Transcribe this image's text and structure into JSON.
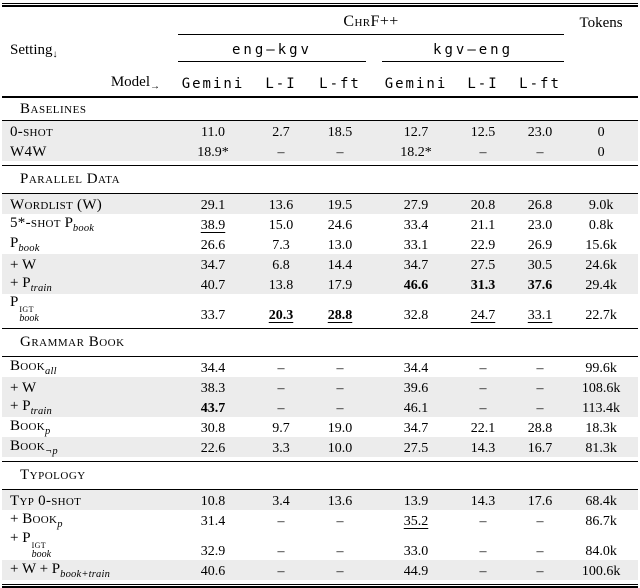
{
  "header": {
    "metric_label": "ChrF++",
    "tokens_label": "Tokens",
    "setting_label": "Setting",
    "setting_arrow": "↓",
    "model_label": "Model",
    "model_arrow": "→",
    "groups": [
      "eng–kgv",
      "kgv–eng"
    ],
    "model_cols": [
      "Gemini",
      "L-I",
      "L-ft"
    ]
  },
  "shade_color": "#ececec",
  "sections": [
    {
      "title": "Baselines",
      "rows": [
        {
          "label": [
            {
              "sc": "0-shot"
            }
          ],
          "indent": 0,
          "shaded": true,
          "cells": [
            "11.0",
            "2.7",
            "18.5",
            "12.7",
            "12.5",
            "23.0"
          ],
          "tokens": "0"
        },
        {
          "label": [
            {
              "sc": "W4W"
            }
          ],
          "indent": 0,
          "shaded": true,
          "cells": [
            "18.9*",
            "–",
            "–",
            "18.2*",
            "–",
            "–"
          ],
          "tokens": "0"
        }
      ]
    },
    {
      "title": "Parallel Data",
      "rows": [
        {
          "label": [
            {
              "sc": "Wordlist (W)"
            }
          ],
          "indent": 0,
          "shaded": true,
          "cells": [
            "29.1",
            "13.6",
            "19.5",
            "27.9",
            "20.8",
            "26.8"
          ],
          "tokens": "9.0k"
        },
        {
          "label": [
            {
              "sc": "5*-shot"
            },
            {
              "t": " P"
            },
            {
              "sub": "book"
            }
          ],
          "indent": 0,
          "shaded": false,
          "cells": [
            "38.9",
            "15.0",
            "24.6",
            "33.4",
            "21.1",
            "23.0"
          ],
          "underline": [
            0
          ],
          "tokens": "0.8k"
        },
        {
          "label": [
            {
              "t": "P"
            },
            {
              "sub": "book"
            }
          ],
          "indent": 0,
          "shaded": false,
          "cells": [
            "26.6",
            "7.3",
            "13.0",
            "33.1",
            "22.9",
            "26.9"
          ],
          "tokens": "15.6k"
        },
        {
          "label": [
            {
              "t": "+ W"
            }
          ],
          "indent": 1,
          "shaded": true,
          "cells": [
            "34.7",
            "6.8",
            "14.4",
            "34.7",
            "27.5",
            "30.5"
          ],
          "tokens": "24.6k"
        },
        {
          "label": [
            {
              "t": "+ P"
            },
            {
              "sub": "train"
            }
          ],
          "indent": 2,
          "shaded": true,
          "cells": [
            "40.7",
            "13.8",
            "17.9",
            "46.6",
            "31.3",
            "37.6"
          ],
          "bold": [
            3,
            4,
            5
          ],
          "tokens": "29.4k"
        },
        {
          "label": [
            {
              "t": "P"
            },
            {
              "stack": {
                "sup": "IGT",
                "sub": "book"
              }
            }
          ],
          "indent": 0,
          "shaded": false,
          "cells": [
            "33.7",
            "20.3",
            "28.8",
            "32.8",
            "24.7",
            "33.1"
          ],
          "bold": [
            1,
            2
          ],
          "underline": [
            1,
            2,
            4,
            5
          ],
          "tokens": "22.7k"
        }
      ]
    },
    {
      "title": "Grammar Book",
      "rows": [
        {
          "label": [
            {
              "sc": "Book"
            },
            {
              "sub": "all"
            }
          ],
          "indent": 0,
          "shaded": false,
          "cells": [
            "34.4",
            "–",
            "–",
            "34.4",
            "–",
            "–"
          ],
          "tokens": "99.6k"
        },
        {
          "label": [
            {
              "t": "+ W"
            }
          ],
          "indent": 1,
          "shaded": true,
          "cells": [
            "38.3",
            "–",
            "–",
            "39.6",
            "–",
            "–"
          ],
          "tokens": "108.6k"
        },
        {
          "label": [
            {
              "t": "+ P"
            },
            {
              "sub": "train"
            }
          ],
          "indent": 2,
          "shaded": true,
          "cells": [
            "43.7",
            "–",
            "–",
            "46.1",
            "–",
            "–"
          ],
          "bold": [
            0
          ],
          "tokens": "113.4k"
        },
        {
          "label": [
            {
              "sc": "Book"
            },
            {
              "sub": "p"
            }
          ],
          "indent": 0,
          "shaded": false,
          "cells": [
            "30.8",
            "9.7",
            "19.0",
            "34.7",
            "22.1",
            "28.8"
          ],
          "tokens": "18.3k"
        },
        {
          "label": [
            {
              "sc": "Book"
            },
            {
              "sub": "¬p"
            }
          ],
          "indent": 0,
          "shaded": true,
          "cells": [
            "22.6",
            "3.3",
            "10.0",
            "27.5",
            "14.3",
            "16.7"
          ],
          "tokens": "81.3k"
        }
      ]
    },
    {
      "title": "Typology",
      "rows": [
        {
          "label": [
            {
              "sc": "Typ 0-shot"
            }
          ],
          "indent": 0,
          "shaded": true,
          "cells": [
            "10.8",
            "3.4",
            "13.6",
            "13.9",
            "14.3",
            "17.6"
          ],
          "tokens": "68.4k"
        },
        {
          "label": [
            {
              "t": "+ "
            },
            {
              "sc": "Book"
            },
            {
              "sub": "p"
            }
          ],
          "indent": 1,
          "shaded": false,
          "cells": [
            "31.4",
            "–",
            "–",
            "35.2",
            "–",
            "–"
          ],
          "underline": [
            3
          ],
          "tokens": "86.7k"
        },
        {
          "label": [
            {
              "t": "+ P"
            },
            {
              "stack": {
                "sup": "IGT",
                "sub": "book"
              }
            }
          ],
          "indent": 1,
          "shaded": false,
          "cells": [
            "32.9",
            "–",
            "–",
            "33.0",
            "–",
            "–"
          ],
          "tokens": "84.0k"
        },
        {
          "label": [
            {
              "t": "+ W + P"
            },
            {
              "sub": "book+train"
            }
          ],
          "indent": 1,
          "shaded": true,
          "cells": [
            "40.6",
            "–",
            "–",
            "44.9",
            "–",
            "–"
          ],
          "tokens": "100.6k"
        }
      ]
    }
  ]
}
